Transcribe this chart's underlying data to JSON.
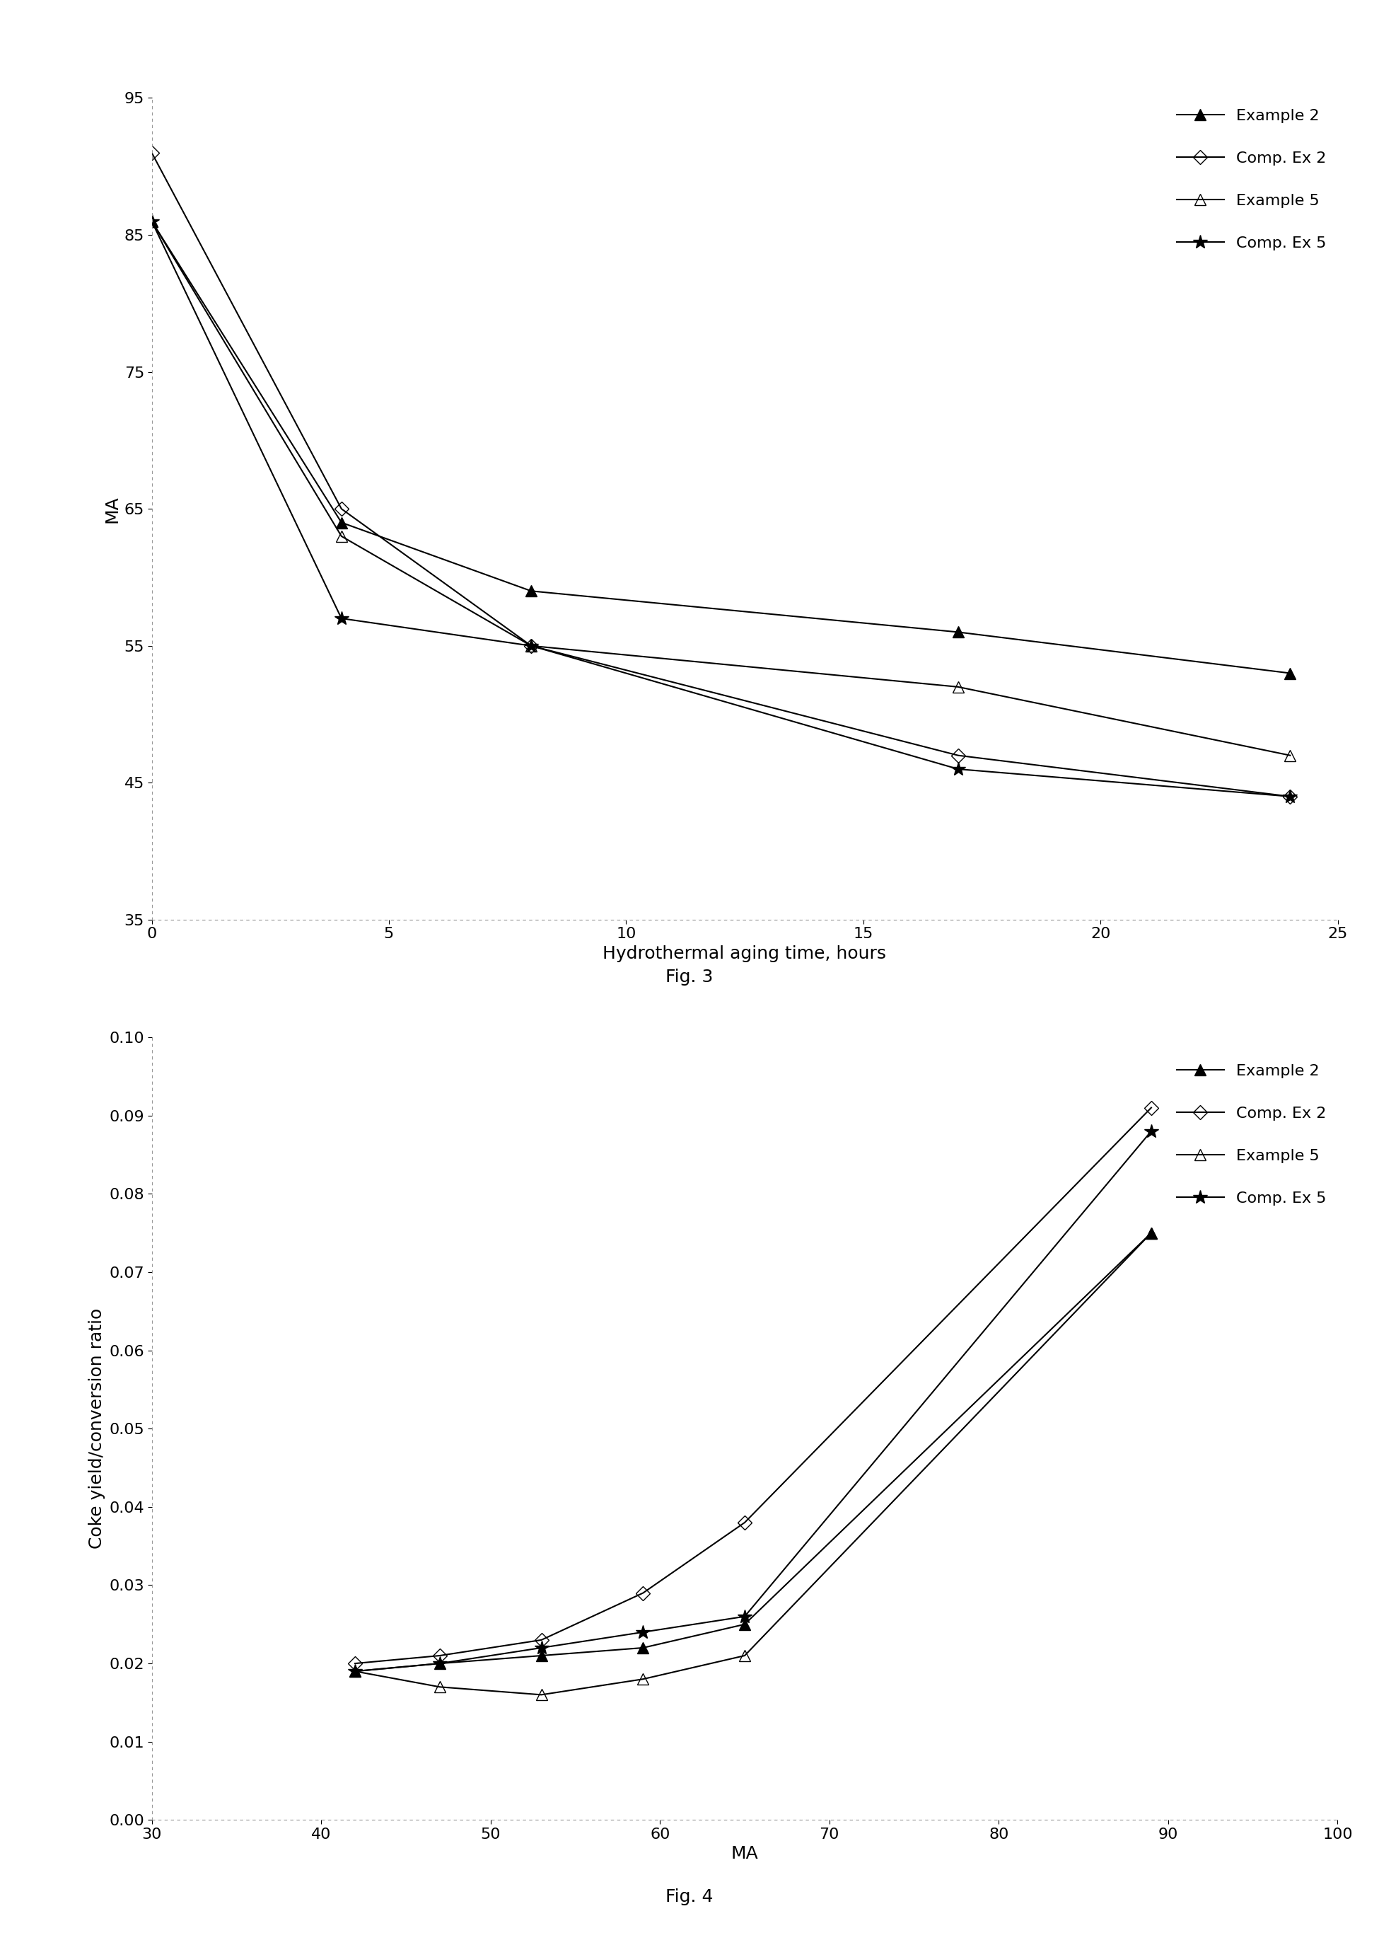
{
  "fig3": {
    "xlabel": "Hydrothermal aging time, hours",
    "ylabel": "MA",
    "xlim": [
      0,
      25
    ],
    "ylim": [
      35,
      95
    ],
    "yticks": [
      35,
      45,
      55,
      65,
      75,
      85,
      95
    ],
    "xticks": [
      0,
      5,
      10,
      15,
      20,
      25
    ],
    "series": [
      {
        "label": "Example 2",
        "x": [
          0,
          4,
          8,
          17,
          24
        ],
        "y": [
          86,
          64,
          59,
          56,
          53
        ],
        "marker": "^",
        "fillstyle": "full"
      },
      {
        "label": "Comp. Ex 2",
        "x": [
          0,
          4,
          8,
          17,
          24
        ],
        "y": [
          91,
          65,
          55,
          47,
          44
        ],
        "marker": "D",
        "fillstyle": "none"
      },
      {
        "label": "Example 5",
        "x": [
          0,
          4,
          8,
          17,
          24
        ],
        "y": [
          86,
          63,
          55,
          52,
          47
        ],
        "marker": "^",
        "fillstyle": "none"
      },
      {
        "label": "Comp. Ex 5",
        "x": [
          0,
          4,
          8,
          17,
          24
        ],
        "y": [
          86,
          57,
          55,
          46,
          44
        ],
        "marker": "*",
        "fillstyle": "full"
      }
    ]
  },
  "fig4": {
    "xlabel": "MA",
    "ylabel": "Coke yield/conversion ratio",
    "xlim": [
      30,
      100
    ],
    "ylim": [
      0.0,
      0.1
    ],
    "yticks": [
      0.0,
      0.01,
      0.02,
      0.03,
      0.04,
      0.05,
      0.06,
      0.07,
      0.08,
      0.09,
      0.1
    ],
    "xticks": [
      30,
      40,
      50,
      60,
      70,
      80,
      90,
      100
    ],
    "series": [
      {
        "label": "Example 2",
        "x": [
          42,
          47,
          53,
          59,
          65,
          89
        ],
        "y": [
          0.019,
          0.02,
          0.021,
          0.022,
          0.025,
          0.075
        ],
        "marker": "^",
        "fillstyle": "full"
      },
      {
        "label": "Comp. Ex 2",
        "x": [
          42,
          47,
          53,
          59,
          65,
          89
        ],
        "y": [
          0.02,
          0.021,
          0.023,
          0.029,
          0.038,
          0.091
        ],
        "marker": "D",
        "fillstyle": "none"
      },
      {
        "label": "Example 5",
        "x": [
          42,
          47,
          53,
          59,
          65,
          89
        ],
        "y": [
          0.019,
          0.017,
          0.016,
          0.018,
          0.021,
          0.075
        ],
        "marker": "^",
        "fillstyle": "none"
      },
      {
        "label": "Comp. Ex 5",
        "x": [
          42,
          47,
          53,
          59,
          65,
          89
        ],
        "y": [
          0.019,
          0.02,
          0.022,
          0.024,
          0.026,
          0.088
        ],
        "marker": "*",
        "fillstyle": "full"
      }
    ]
  },
  "fig3_caption": "Fig. 3",
  "fig4_caption": "Fig. 4",
  "background_color": "#ffffff",
  "line_color": "#000000",
  "font_size": 18,
  "tick_font_size": 16,
  "legend_font_size": 16,
  "linewidth": 1.5,
  "markersize_tri": 11,
  "markersize_dia": 10,
  "markersize_star": 15
}
